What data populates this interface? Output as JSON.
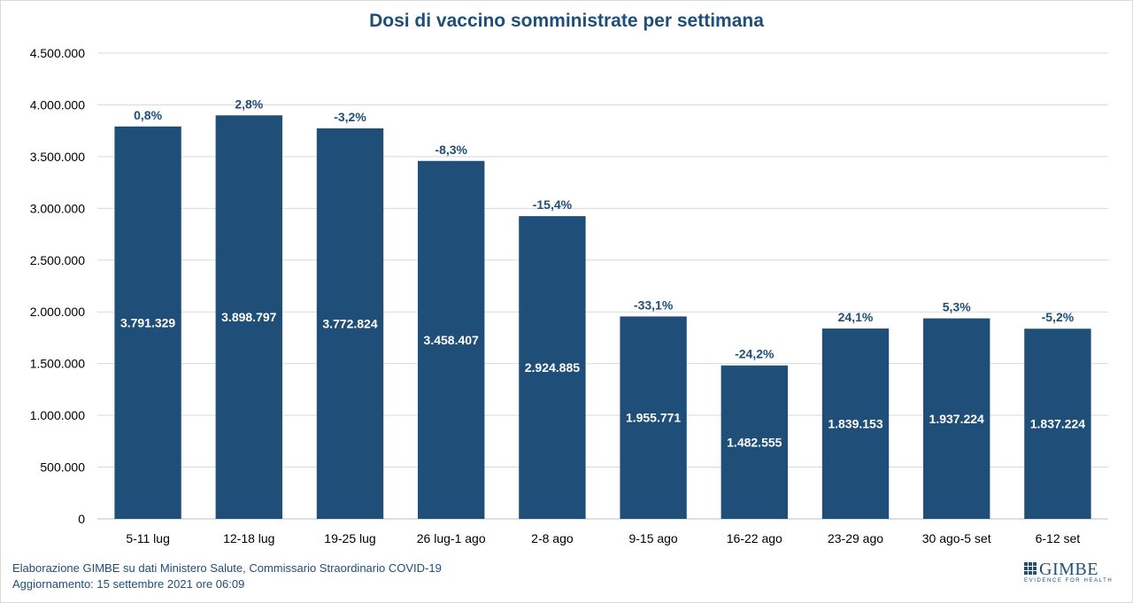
{
  "chart_data": {
    "type": "bar",
    "title": "Dosi di vaccino somministrate per settimana",
    "xlabel": "",
    "ylabel": "",
    "ylim": [
      0,
      4500000
    ],
    "y_ticks": [
      "0",
      "500.000",
      "1.000.000",
      "1.500.000",
      "2.000.000",
      "2.500.000",
      "3.000.000",
      "3.500.000",
      "4.000.000",
      "4.500.000"
    ],
    "grid": true,
    "legend": "none",
    "categories": [
      "5-11 lug",
      "12-18 lug",
      "19-25 lug",
      "26 lug-1 ago",
      "2-8 ago",
      "9-15 ago",
      "16-22 ago",
      "23-29 ago",
      "30 ago-5 set",
      "6-12 set"
    ],
    "values": [
      3791329,
      3898797,
      3772824,
      3458407,
      2924885,
      1955771,
      1482555,
      1839153,
      1937224,
      1837224
    ],
    "value_labels": [
      "3.791.329",
      "3.898.797",
      "3.772.824",
      "3.458.407",
      "2.924.885",
      "1.955.771",
      "1.482.555",
      "1.839.153",
      "1.937.224",
      "1.837.224"
    ],
    "change_labels": [
      "0,8%",
      "2,8%",
      "-3,2%",
      "-8,3%",
      "-15,4%",
      "-33,1%",
      "-24,2%",
      "24,1%",
      "5,3%",
      "-5,2%"
    ],
    "colors": {
      "bar": "#1f4e79",
      "text": "#1f4e79",
      "grid": "#d9d9d9",
      "axis_text": "#000000"
    }
  },
  "footer": {
    "line1": "Elaborazione GIMBE su dati Ministero Salute, Commissario Straordinario COVID-19",
    "line2": "Aggiornamento: 15 settembre 2021 ore 06:09"
  },
  "logo": {
    "name": "GIMBE",
    "tagline": "EVIDENCE FOR HEALTH"
  }
}
